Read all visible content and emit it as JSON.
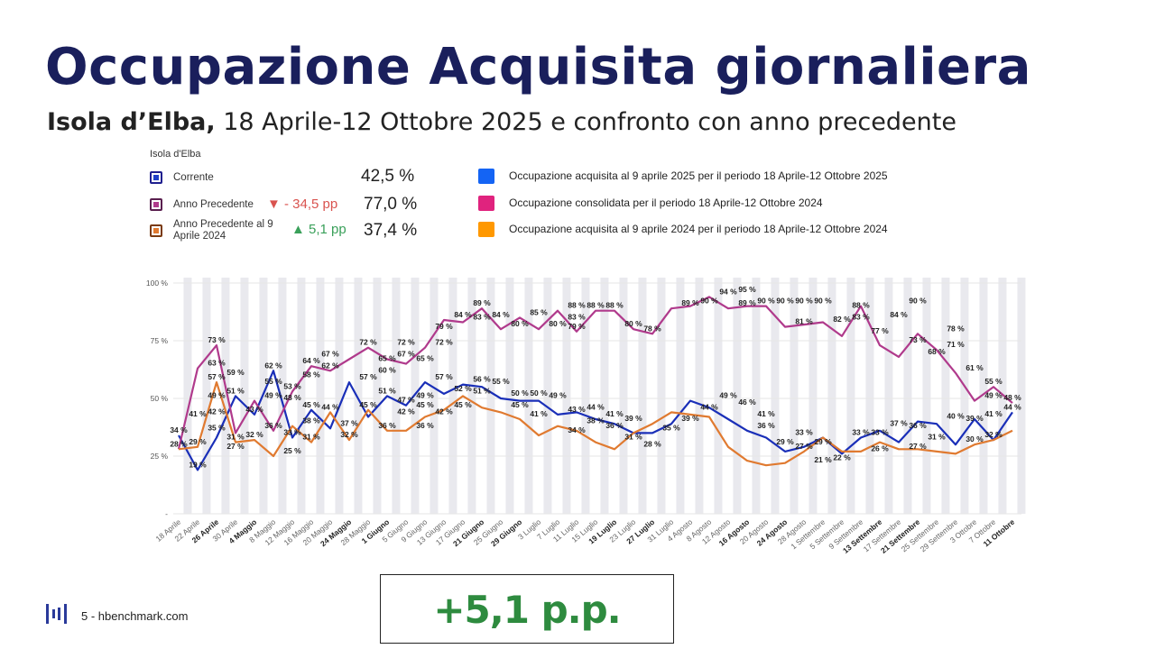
{
  "header": {
    "title": "Occupazione Acquisita giornaliera",
    "subtitle_place": "Isola d’Elba,",
    "subtitle_rest": " 18 Aprile-12 Ottobre 2025 e confronto con anno precedente"
  },
  "kpi_panel": {
    "title": "Isola d'Elba",
    "items": [
      {
        "label": "Corrente",
        "value": "42,5 %",
        "delta": "",
        "color": "#1f3fc7"
      },
      {
        "label": "Anno Precedente",
        "value": "77,0 %",
        "delta": "▼ - 34,5 pp",
        "delta_color": "#d9534f",
        "color": "#b03a8c"
      },
      {
        "label": "Anno Precedente al 9 Aprile 2024",
        "value": "37,4 %",
        "delta": "▲ 5,1 pp",
        "delta_color": "#3aa05a",
        "color": "#e07a30"
      }
    ]
  },
  "legend": [
    {
      "label": "Occupazione acquisita al 9 aprile 2025 per il periodo 18 Aprile-12 Ottobre 2025",
      "color": "#1464f4"
    },
    {
      "label": "Occupazione consolidata per il periodo 18 Aprile-12 Ottobre 2024",
      "color": "#e0237e"
    },
    {
      "label": "Occupazione acquisita al 9 aprile 2024 per il periodo 18 Aprile-12 Ottobre 2024",
      "color": "#ff9800"
    }
  ],
  "chart_data": {
    "type": "line",
    "x": [
      "18 Aprile",
      "22 Aprile",
      "26 Aprile",
      "30 Aprile",
      "4 Maggio",
      "8 Maggio",
      "12 Maggio",
      "16 Maggio",
      "20 Maggio",
      "24 Maggio",
      "28 Maggio",
      "1 Giugno",
      "5 Giugno",
      "9 Giugno",
      "13 Giugno",
      "17 Giugno",
      "21 Giugno",
      "25 Giugno",
      "29 Giugno",
      "3 Luglio",
      "7 Luglio",
      "11 Luglio",
      "15 Luglio",
      "19 Luglio",
      "23 Luglio",
      "27 Luglio",
      "31 Luglio",
      "4 Agosto",
      "8 Agosto",
      "12 Agosto",
      "16 Agosto",
      "20 Agosto",
      "24 Agosto",
      "28 Agosto",
      "1 Settembre",
      "5 Settembre",
      "9 Settembre",
      "13 Settembre",
      "17 Settembre",
      "21 Settembre",
      "25 Settembre",
      "29 Settembre",
      "3 Ottobre",
      "7 Ottobre",
      "11 Ottobre"
    ],
    "bold_ticks": [
      "26 Aprile",
      "4 Maggio",
      "24 Maggio",
      "1 Giugno",
      "21 Giugno",
      "29 Giugno",
      "19 Luglio",
      "27 Luglio",
      "16 Agosto",
      "24 Agosto",
      "13 Settembre",
      "21 Settembre",
      "11 Ottobre"
    ],
    "yticks": [
      "-",
      "25 %",
      "50 %",
      "75 %",
      "100 %"
    ],
    "ylim": [
      0,
      100
    ],
    "grid": true,
    "series": [
      {
        "key": "corrente",
        "color": "#1a2fb8",
        "values": [
          34,
          19,
          33,
          51,
          43,
          62,
          33,
          45,
          37,
          57,
          42,
          51,
          47,
          57,
          52,
          56,
          55,
          50,
          49,
          49,
          43,
          44,
          41,
          39,
          35,
          35,
          39,
          49,
          46,
          41,
          36,
          33,
          27,
          29,
          33,
          26,
          33,
          36,
          31,
          40,
          39,
          30,
          41,
          32,
          44
        ]
      },
      {
        "key": "precedente",
        "color": "#b03a8c",
        "values": [
          28,
          63,
          73,
          35,
          49,
          36,
          53,
          64,
          62,
          67,
          72,
          67,
          65,
          72,
          84,
          83,
          89,
          80,
          85,
          80,
          88,
          79,
          88,
          88,
          80,
          78,
          89,
          90,
          94,
          89,
          90,
          90,
          81,
          82,
          83,
          77,
          90,
          73,
          68,
          78,
          71,
          61,
          49,
          55,
          48
        ]
      },
      {
        "key": "precedente_9apr",
        "color": "#e07a30",
        "values": [
          28,
          29,
          57,
          31,
          32,
          25,
          38,
          31,
          44,
          32,
          45,
          36,
          36,
          42,
          45,
          51,
          46,
          44,
          41,
          34,
          38,
          36,
          31,
          28,
          35,
          39,
          44,
          43,
          42,
          29,
          23,
          21,
          22,
          27,
          33,
          27,
          27,
          31,
          28,
          28,
          27,
          26,
          30,
          32,
          36
        ]
      }
    ],
    "annotations": [
      {
        "x": "18 Aprile",
        "y": 34,
        "label": "34 %"
      },
      {
        "x": "18 Aprile",
        "y": 28,
        "label": "28 %"
      },
      {
        "x": "22 Aprile",
        "y": 41,
        "label": "41 %"
      },
      {
        "x": "22 Aprile",
        "y": 29,
        "label": "29 %"
      },
      {
        "x": "22 Aprile",
        "y": 19,
        "label": "19 %"
      },
      {
        "x": "26 Aprile",
        "y": 73,
        "label": "73 %"
      },
      {
        "x": "26 Aprile",
        "y": 63,
        "label": "63 %"
      },
      {
        "x": "26 Aprile",
        "y": 57,
        "label": "57 %"
      },
      {
        "x": "26 Aprile",
        "y": 49,
        "label": "49 %"
      },
      {
        "x": "26 Aprile",
        "y": 42,
        "label": "42 %"
      },
      {
        "x": "26 Aprile",
        "y": 35,
        "label": "35 %"
      },
      {
        "x": "30 Apr",
        "y": 59,
        "label": "59 %"
      },
      {
        "x": "30 Aprile",
        "y": 51,
        "label": "51 %"
      },
      {
        "x": "30 Aprile",
        "y": 31,
        "label": "31 %"
      },
      {
        "x": "30 Aprile",
        "y": 27,
        "label": "27 %"
      },
      {
        "x": "4 Maggio",
        "y": 43,
        "label": "43 %"
      },
      {
        "x": "4 Maggio",
        "y": 32,
        "label": "32 %"
      },
      {
        "x": "8 Maggio",
        "y": 62,
        "label": "62 %"
      },
      {
        "x": "8 Maggio",
        "y": 55,
        "label": "55 %"
      },
      {
        "x": "8 Maggio",
        "y": 49,
        "label": "49 %"
      },
      {
        "x": "8 Maggio",
        "y": 36,
        "label": "36 %"
      },
      {
        "x": "12 Maggio",
        "y": 53,
        "label": "53 %"
      },
      {
        "x": "12 Maggio",
        "y": 48,
        "label": "48 %"
      },
      {
        "x": "12 Maggio",
        "y": 33,
        "label": "33 %"
      },
      {
        "x": "12 Maggio",
        "y": 25,
        "label": "25 %"
      },
      {
        "x": "16 Maggio",
        "y": 64,
        "label": "64 %"
      },
      {
        "x": "16 Maggio",
        "y": 58,
        "label": "58 %"
      },
      {
        "x": "16 Maggio",
        "y": 45,
        "label": "45 %"
      },
      {
        "x": "16 Maggio",
        "y": 38,
        "label": "38 %"
      },
      {
        "x": "16 Maggio",
        "y": 31,
        "label": "31 %"
      },
      {
        "x": "20 Maggio",
        "y": 67,
        "label": "67 %"
      },
      {
        "x": "20 Maggio",
        "y": 62,
        "label": "62 %"
      },
      {
        "x": "20 Maggio",
        "y": 44,
        "label": "44 %"
      },
      {
        "x": "24 Maggio",
        "y": 37,
        "label": "37 %"
      },
      {
        "x": "24 Maggio",
        "y": 32,
        "label": "32 %"
      },
      {
        "x": "28 Maggio",
        "y": 72,
        "label": "72 %"
      },
      {
        "x": "28 Maggio",
        "y": 57,
        "label": "57 %"
      },
      {
        "x": "28 Maggio",
        "y": 45,
        "label": "45 %"
      },
      {
        "x": "1 Giugno",
        "y": 65,
        "label": "65 %"
      },
      {
        "x": "1 Giugno",
        "y": 60,
        "label": "60 %"
      },
      {
        "x": "1 Giugno",
        "y": 51,
        "label": "51 %"
      },
      {
        "x": "1 Giugno",
        "y": 36,
        "label": "36 %"
      },
      {
        "x": "5 Giugno",
        "y": 72,
        "label": "72 %"
      },
      {
        "x": "5 Giugno",
        "y": 67,
        "label": "67 %"
      },
      {
        "x": "5 Giugno",
        "y": 47,
        "label": "47 %"
      },
      {
        "x": "5 Giugno",
        "y": 42,
        "label": "42 %"
      },
      {
        "x": "9 Giugno",
        "y": 65,
        "label": "65 %"
      },
      {
        "x": "9 Giugno",
        "y": 49,
        "label": "49 %"
      },
      {
        "x": "9 Giugno",
        "y": 45,
        "label": "45 %"
      },
      {
        "x": "9 Giugno",
        "y": 36,
        "label": "36 %"
      },
      {
        "x": "13 Giugno",
        "y": 79,
        "label": "79 %"
      },
      {
        "x": "13 Giugno",
        "y": 72,
        "label": "72 %"
      },
      {
        "x": "13 Giugno",
        "y": 57,
        "label": "57 %"
      },
      {
        "x": "13 Giugno",
        "y": 42,
        "label": "42 %"
      },
      {
        "x": "17 Giugno",
        "y": 84,
        "label": "84 %"
      },
      {
        "x": "17 Giugno",
        "y": 52,
        "label": "52 %"
      },
      {
        "x": "17 Giugno",
        "y": 45,
        "label": "45 %"
      },
      {
        "x": "21 Giugno",
        "y": 89,
        "label": "89 %"
      },
      {
        "x": "21 Giugno",
        "y": 83,
        "label": "83 %"
      },
      {
        "x": "21 Giugno",
        "y": 56,
        "label": "56 %"
      },
      {
        "x": "21 Giugno",
        "y": 51,
        "label": "51 %"
      },
      {
        "x": "25 Giugno",
        "y": 84,
        "label": "84 %"
      },
      {
        "x": "25 Giugno",
        "y": 55,
        "label": "55 %"
      },
      {
        "x": "29 Giugno",
        "y": 80,
        "label": "80 %"
      },
      {
        "x": "29 Giugno",
        "y": 50,
        "label": "50 %"
      },
      {
        "x": "29 Giugno",
        "y": 45,
        "label": "45 %"
      },
      {
        "x": "3 Luglio",
        "y": 85,
        "label": "85 %"
      },
      {
        "x": "3 Luglio",
        "y": 50,
        "label": "50 %"
      },
      {
        "x": "3 Luglio",
        "y": 41,
        "label": "41 %"
      },
      {
        "x": "7 Luglio",
        "y": 80,
        "label": "80 %"
      },
      {
        "x": "7 Luglio",
        "y": 49,
        "label": "49 %"
      },
      {
        "x": "11 Luglio",
        "y": 88,
        "label": "88 %"
      },
      {
        "x": "11 Luglio",
        "y": 83,
        "label": "83 %"
      },
      {
        "x": "11 Luglio",
        "y": 79,
        "label": "79 %"
      },
      {
        "x": "11 Luglio",
        "y": 43,
        "label": "43 %"
      },
      {
        "x": "11 Luglio",
        "y": 34,
        "label": "34 %"
      },
      {
        "x": "15 Luglio",
        "y": 88,
        "label": "88 %"
      },
      {
        "x": "15 Luglio",
        "y": 44,
        "label": "44 %"
      },
      {
        "x": "15 Luglio",
        "y": 38,
        "label": "38 %"
      },
      {
        "x": "19 Luglio",
        "y": 88,
        "label": "88 %"
      },
      {
        "x": "19 Luglio",
        "y": 41,
        "label": "41 %"
      },
      {
        "x": "19 Luglio",
        "y": 36,
        "label": "36 %"
      },
      {
        "x": "23 Luglio",
        "y": 80,
        "label": "80 %"
      },
      {
        "x": "23 Luglio",
        "y": 39,
        "label": "39 %"
      },
      {
        "x": "23 Luglio",
        "y": 31,
        "label": "31 %"
      },
      {
        "x": "27 Luglio",
        "y": 78,
        "label": "78 %"
      },
      {
        "x": "27 Luglio",
        "y": 28,
        "label": "28 %"
      },
      {
        "x": "31 Luglio",
        "y": 35,
        "label": "35 %"
      },
      {
        "x": "4 Agosto",
        "y": 89,
        "label": "89 %"
      },
      {
        "x": "4 Agosto",
        "y": 39,
        "label": "39 %"
      },
      {
        "x": "8 Agosto",
        "y": 90,
        "label": "90 %"
      },
      {
        "x": "8 Agosto",
        "y": 44,
        "label": "44 %"
      },
      {
        "x": "12 Agosto",
        "y": 94,
        "label": "94 %"
      },
      {
        "x": "12 Agosto",
        "y": 49,
        "label": "49 %"
      },
      {
        "x": "16 Agosto",
        "y": 95,
        "label": "95 %"
      },
      {
        "x": "16 Agosto",
        "y": 89,
        "label": "89 %"
      },
      {
        "x": "16 Agosto",
        "y": 46,
        "label": "46 %"
      },
      {
        "x": "20 Agosto",
        "y": 90,
        "label": "90 %"
      },
      {
        "x": "20 Agosto",
        "y": 41,
        "label": "41 %"
      },
      {
        "x": "20 Agosto",
        "y": 36,
        "label": "36 %"
      },
      {
        "x": "24 Agosto",
        "y": 90,
        "label": "90 %"
      },
      {
        "x": "24 Agosto",
        "y": 29,
        "label": "29 %"
      },
      {
        "x": "28 Agosto",
        "y": 90,
        "label": "90 %"
      },
      {
        "x": "28 Agosto",
        "y": 81,
        "label": "81 %"
      },
      {
        "x": "28 Agosto",
        "y": 33,
        "label": "33 %"
      },
      {
        "x": "28 Agosto",
        "y": 27,
        "label": "27 %"
      },
      {
        "x": "1 Settembre",
        "y": 90,
        "label": "90 %"
      },
      {
        "x": "1 Settembre",
        "y": 29,
        "label": "29 %"
      },
      {
        "x": "1 Settembre",
        "y": 21,
        "label": "21 %"
      },
      {
        "x": "5 Settembre",
        "y": 82,
        "label": "82 %"
      },
      {
        "x": "5 Settembre",
        "y": 22,
        "label": "22 %"
      },
      {
        "x": "9 Settembre",
        "y": 88,
        "label": "88 %"
      },
      {
        "x": "9 Settembre",
        "y": 83,
        "label": "83 %"
      },
      {
        "x": "9 Settembre",
        "y": 33,
        "label": "33 %"
      },
      {
        "x": "13 Settembre",
        "y": 77,
        "label": "77 %"
      },
      {
        "x": "13 Settembre",
        "y": 33,
        "label": "33 %"
      },
      {
        "x": "13 Settembre",
        "y": 26,
        "label": "26 %"
      },
      {
        "x": "17 Settembre",
        "y": 84,
        "label": "84 %"
      },
      {
        "x": "17 Settembre",
        "y": 37,
        "label": "37 %"
      },
      {
        "x": "21 Settembre",
        "y": 90,
        "label": "90 %"
      },
      {
        "x": "21 Settembre",
        "y": 73,
        "label": "73 %"
      },
      {
        "x": "21 Settembre",
        "y": 36,
        "label": "36 %"
      },
      {
        "x": "21 Settembre",
        "y": 27,
        "label": "27 %"
      },
      {
        "x": "25 Settembre",
        "y": 68,
        "label": "68 %"
      },
      {
        "x": "25 Settembre",
        "y": 31,
        "label": "31 %"
      },
      {
        "x": "29 Settembre",
        "y": 78,
        "label": "78 %"
      },
      {
        "x": "29 Settembre",
        "y": 71,
        "label": "71 %"
      },
      {
        "x": "29 Settembre",
        "y": 40,
        "label": "40 %"
      },
      {
        "x": "3 Ottobre",
        "y": 61,
        "label": "61 %"
      },
      {
        "x": "3 Ottobre",
        "y": 39,
        "label": "39 %"
      },
      {
        "x": "3 Ottobre",
        "y": 30,
        "label": "30 %"
      },
      {
        "x": "7 Ottobre",
        "y": 55,
        "label": "55 %"
      },
      {
        "x": "7 Ottobre",
        "y": 49,
        "label": "49 %"
      },
      {
        "x": "7 Ottobre",
        "y": 41,
        "label": "41 %"
      },
      {
        "x": "7 Ottobre",
        "y": 32,
        "label": "32 %"
      },
      {
        "x": "11 Ottobre",
        "y": 48,
        "label": "48 %"
      },
      {
        "x": "11 Ottobre",
        "y": 44,
        "label": "44 %"
      }
    ]
  },
  "footer": {
    "text": "5 - hbenchmark.com",
    "highlight": "+5,1 p.p."
  }
}
